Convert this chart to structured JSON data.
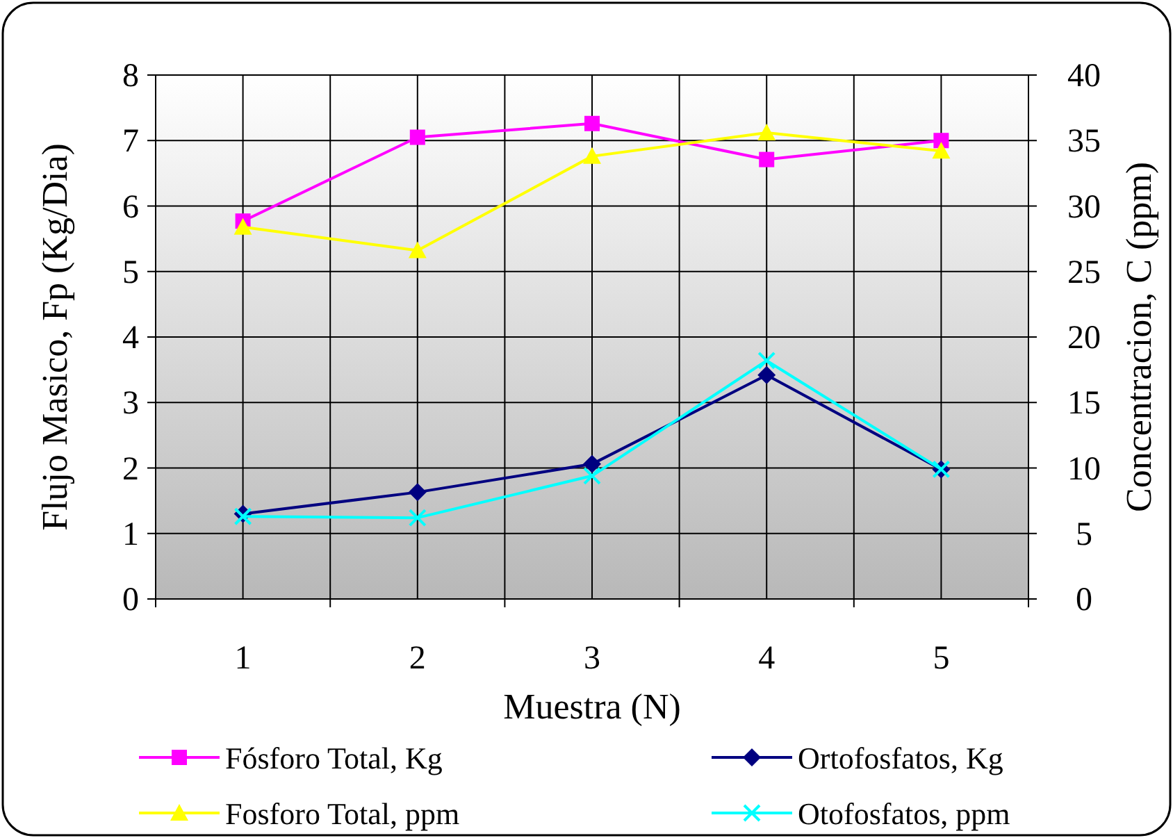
{
  "chart_data": {
    "type": "line",
    "xlabel": "Muestra (N)",
    "ylabel": "Flujo Masico, Fp (Kg/Dia)",
    "y2label": "Concentracion, C (ppm)",
    "categories": [
      "1",
      "2",
      "3",
      "4",
      "5"
    ],
    "ylim": [
      0,
      8
    ],
    "yticks": [
      0,
      1,
      2,
      3,
      4,
      5,
      6,
      7,
      8
    ],
    "y2lim": [
      0,
      40
    ],
    "y2ticks": [
      0,
      5,
      10,
      15,
      20,
      25,
      30,
      35,
      40
    ],
    "grid": true,
    "legend": "bottom",
    "series": [
      {
        "name": "Fósforo Total, Kg",
        "color": "#ff00ff",
        "marker": "square",
        "values": [
          5.77,
          7.05,
          7.26,
          6.71,
          7.0
        ]
      },
      {
        "name": "Ortofosfatos, Kg",
        "color": "#000080",
        "marker": "diamond",
        "values": [
          1.3,
          1.63,
          2.06,
          3.42,
          1.98
        ]
      },
      {
        "name": "Fosforo Total, ppm",
        "color": "#ffff00",
        "marker": "triangle",
        "axis": "y2",
        "values": [
          28.4,
          26.6,
          33.8,
          35.6,
          34.2
        ]
      },
      {
        "name": "Otofosfatos, ppm",
        "color": "#00ffff",
        "marker": "cross",
        "axis": "y2",
        "values": [
          6.3,
          6.2,
          9.4,
          18.2,
          9.9
        ]
      }
    ]
  }
}
